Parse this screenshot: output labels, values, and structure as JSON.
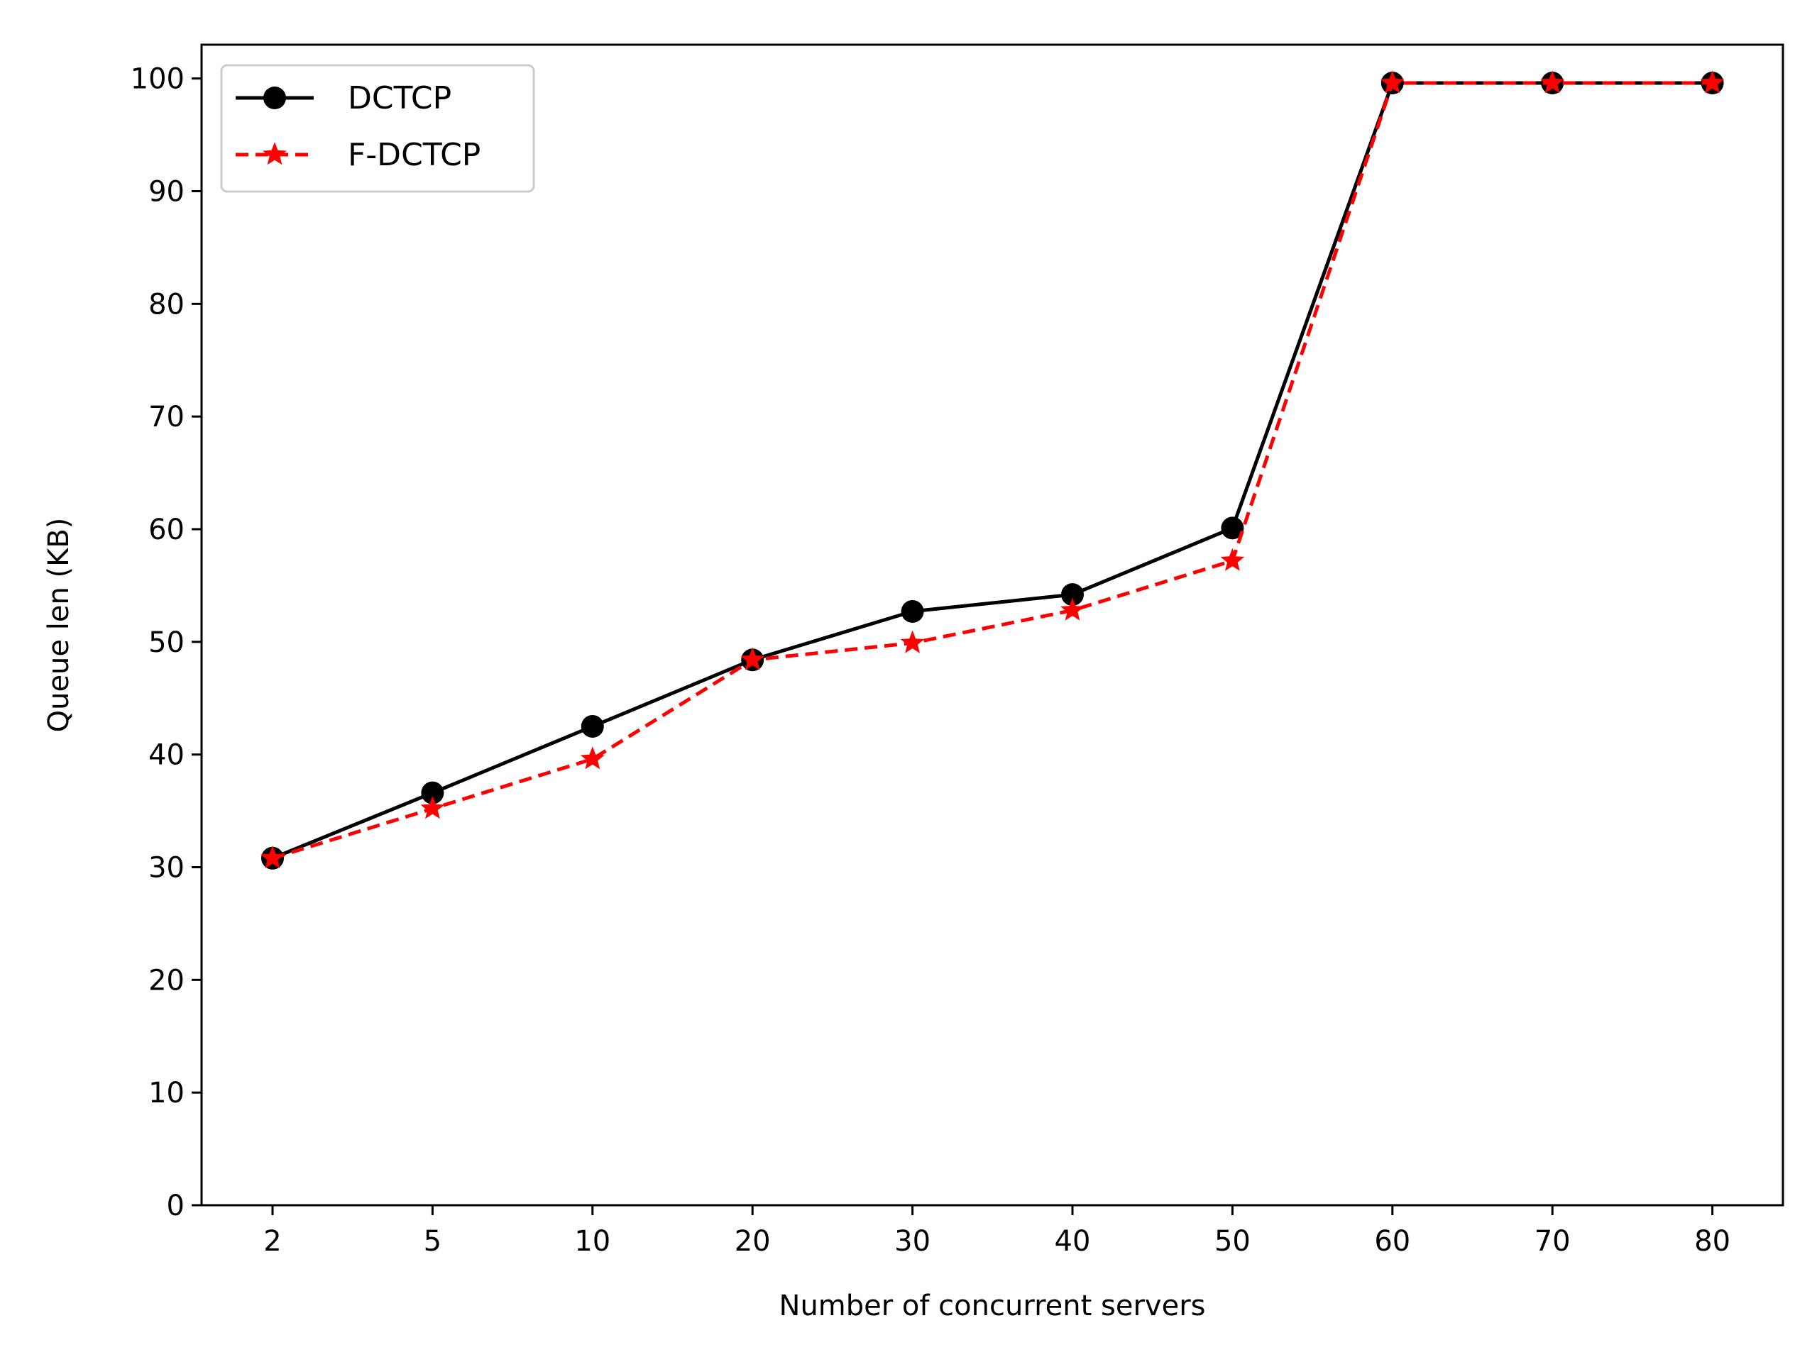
{
  "chart_data": {
    "type": "line",
    "categories": [
      "2",
      "5",
      "10",
      "20",
      "30",
      "40",
      "50",
      "60",
      "70",
      "80"
    ],
    "series": [
      {
        "name": "DCTCP",
        "values": [
          30.8,
          36.6,
          42.5,
          48.4,
          52.7,
          54.2,
          60.1,
          99.6,
          99.6,
          99.6
        ],
        "color": "#000000",
        "linestyle": "solid",
        "marker": "circle"
      },
      {
        "name": "F-DCTCP",
        "values": [
          30.8,
          35.2,
          39.6,
          48.4,
          49.9,
          52.8,
          57.2,
          99.6,
          99.6,
          99.6
        ],
        "color": "#ff0000",
        "linestyle": "dashed",
        "marker": "star"
      }
    ],
    "title": "",
    "xlabel": "Number of concurrent servers",
    "ylabel": "Queue len (KB)",
    "ylim": [
      0,
      103
    ],
    "yticks": [
      0,
      10,
      20,
      30,
      40,
      50,
      60,
      70,
      80,
      90,
      100
    ],
    "grid": false,
    "legend_position": "top-left"
  }
}
